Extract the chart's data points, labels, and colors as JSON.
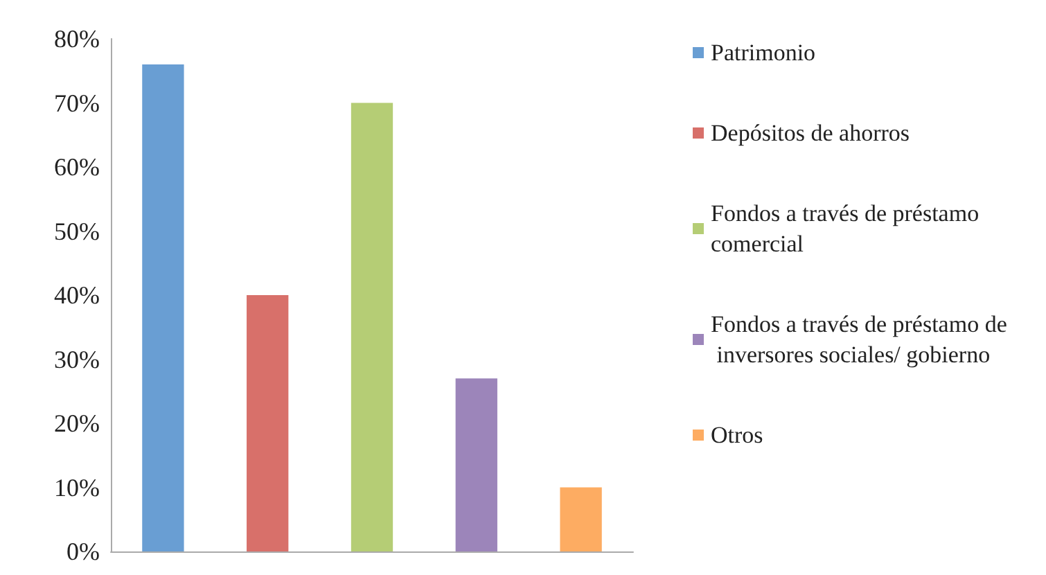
{
  "chart_data": {
    "type": "bar",
    "categories": [
      null,
      null,
      null,
      null,
      null
    ],
    "series": [
      {
        "name": "Patrimonio",
        "color": "#699ed3",
        "values": [
          76,
          null,
          null,
          null,
          null
        ]
      },
      {
        "name": "Depósitos de ahorros",
        "color": "#d8706a",
        "values": [
          null,
          40,
          null,
          null,
          null
        ]
      },
      {
        "name": "Fondos a través de préstamo comercial",
        "color": "#b5cd75",
        "values": [
          null,
          null,
          70,
          null,
          null
        ]
      },
      {
        "name": "Fondos a través de préstamo de inversores sociales/ gobierno",
        "color": "#9c85ba",
        "values": [
          null,
          null,
          null,
          27,
          null
        ]
      },
      {
        "name": "Otros",
        "color": "#fdac62",
        "values": [
          null,
          null,
          null,
          null,
          10
        ]
      }
    ],
    "ylim": [
      0,
      80
    ],
    "yticks": [
      {
        "value": 0,
        "label": "0%"
      },
      {
        "value": 10,
        "label": "10%"
      },
      {
        "value": 20,
        "label": "20%"
      },
      {
        "value": 30,
        "label": "30%"
      },
      {
        "value": 40,
        "label": "40%"
      },
      {
        "value": 50,
        "label": "50%"
      },
      {
        "value": 60,
        "label": "60%"
      },
      {
        "value": 70,
        "label": "70%"
      },
      {
        "value": 80,
        "label": "80%"
      }
    ],
    "grid": false,
    "legend": "right"
  }
}
